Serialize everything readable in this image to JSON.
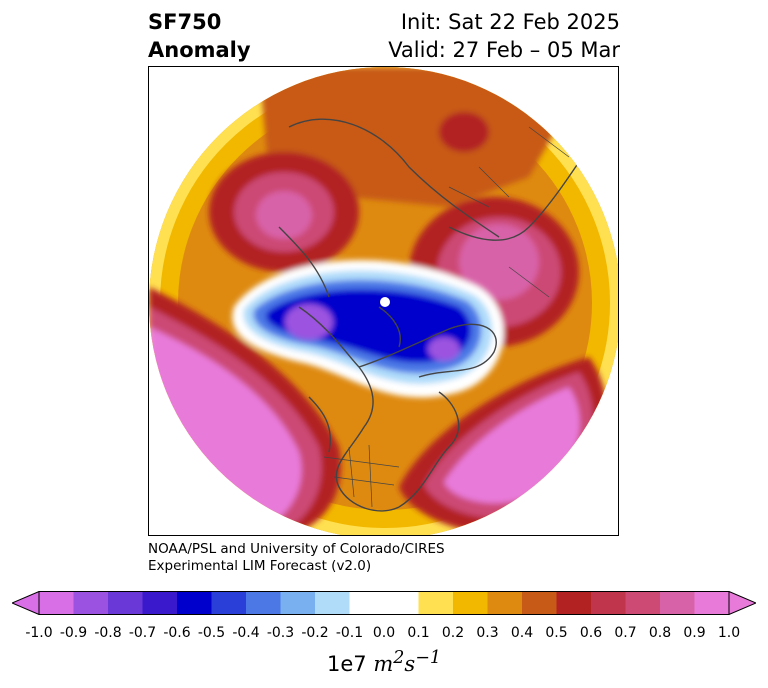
{
  "title": {
    "left_line1": "SF750",
    "left_line2": "Anomaly",
    "right_line1": "Init: Sat 22 Feb 2025",
    "right_line2": "Valid: 27 Feb – 05 Mar"
  },
  "credit": {
    "line1": "NOAA/PSL and University of Colorado/CIRES",
    "line2": "Experimental LIM Forecast (v2.0)"
  },
  "colorbar": {
    "tick_labels": [
      "-1.0",
      "-0.9",
      "-0.8",
      "-0.7",
      "-0.6",
      "-0.5",
      "-0.4",
      "-0.3",
      "-0.2",
      "-0.1",
      "0.0",
      "0.1",
      "0.2",
      "0.3",
      "0.4",
      "0.5",
      "0.6",
      "0.7",
      "0.8",
      "0.9",
      "1.0"
    ],
    "colors": [
      "#d86fe6",
      "#9b52e0",
      "#6a38d6",
      "#3a18cc",
      "#0000cc",
      "#2a3fd8",
      "#4c78e6",
      "#78b0f0",
      "#b0dcfa",
      "#ffffff",
      "#ffffff",
      "#ffe050",
      "#f2b800",
      "#de8a10",
      "#c85a18",
      "#b22222",
      "#c0344c",
      "#cc4a74",
      "#d862a8",
      "#e87ada"
    ],
    "extend_low_color": "#d86fe6",
    "extend_high_color": "#e87ada",
    "unit_base": "1e7",
    "unit_m": "m",
    "unit_m_exp": "2",
    "unit_s": "s",
    "unit_s_exp": "−1"
  },
  "map": {
    "projection": "north-polar-stereographic",
    "variable": "750 hPa streamfunction anomaly",
    "features": [
      "coastlines",
      "country-borders",
      "state-borders"
    ],
    "anomaly_centers": [
      {
        "region": "north-pacific",
        "sign": "positive",
        "value": 1.0
      },
      {
        "region": "eastern-north-america-atlantic",
        "sign": "positive",
        "value": 0.9
      },
      {
        "region": "eurasia-north",
        "sign": "positive",
        "value": 0.5
      },
      {
        "region": "siberia",
        "sign": "positive",
        "value": 0.8
      },
      {
        "region": "arctic",
        "sign": "negative",
        "value": -0.6
      },
      {
        "region": "beaufort-sea",
        "sign": "negative",
        "value": -0.9
      },
      {
        "region": "greenland-sea",
        "sign": "negative",
        "value": -0.8
      }
    ]
  }
}
